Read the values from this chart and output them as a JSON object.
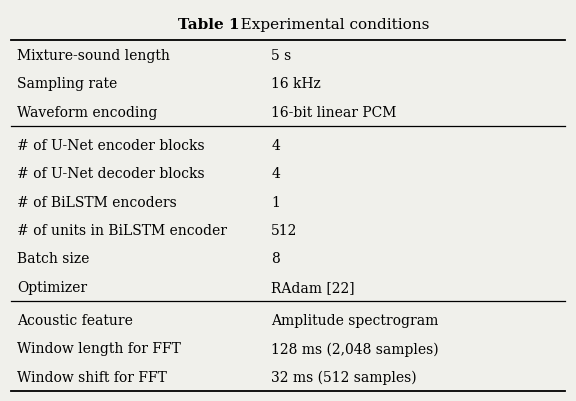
{
  "title_bold": "Table 1",
  "title_rest": ". Experimental conditions",
  "rows": [
    [
      "Mixture-sound length",
      "5 s"
    ],
    [
      "Sampling rate",
      "16 kHz"
    ],
    [
      "Waveform encoding",
      "16-bit linear PCM"
    ],
    [
      "# of U-Net encoder blocks",
      "4"
    ],
    [
      "# of U-Net decoder blocks",
      "4"
    ],
    [
      "# of BiLSTM encoders",
      "1"
    ],
    [
      "# of units in BiLSTM encoder",
      "512"
    ],
    [
      "Batch size",
      "8"
    ],
    [
      "Optimizer",
      "RAdam [22]"
    ],
    [
      "Acoustic feature",
      "Amplitude spectrogram"
    ],
    [
      "Window length for FFT",
      "128 ms (2,048 samples)"
    ],
    [
      "Window shift for FFT",
      "32 ms (512 samples)"
    ]
  ],
  "section_breaks_after": [
    2,
    8
  ],
  "bg_color": "#f0f0eb",
  "text_color": "#000000",
  "fontsize": 10.0,
  "title_fontsize": 11.0
}
